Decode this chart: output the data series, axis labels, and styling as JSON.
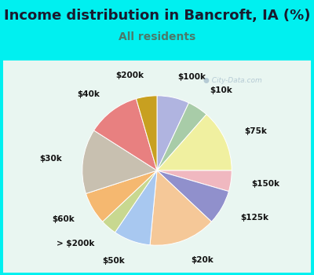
{
  "title": "Income distribution in Bancroft, IA (%)",
  "subtitle": "All residents",
  "title_color": "#1a1a2e",
  "subtitle_color": "#4a7a6a",
  "bg_color": "#00f0f0",
  "watermark": "City-Data.com",
  "labels": [
    "$100k",
    "$10k",
    "$75k",
    "$150k",
    "$125k",
    "$20k",
    "$50k",
    "> $200k",
    "$60k",
    "$30k",
    "$40k",
    "$200k"
  ],
  "values": [
    7.0,
    4.5,
    13.5,
    4.5,
    7.5,
    14.5,
    8.0,
    3.5,
    7.0,
    14.0,
    11.5,
    4.5
  ],
  "colors": [
    "#b0b4e0",
    "#a8cca8",
    "#f0f0a0",
    "#f0b8c0",
    "#9090cc",
    "#f5c898",
    "#a8c8f0",
    "#c8d890",
    "#f5b870",
    "#c8c0b0",
    "#e88080",
    "#c8a020"
  ],
  "startangle": 90,
  "label_fontsize": 7.5,
  "title_fontsize": 13,
  "subtitle_fontsize": 10
}
